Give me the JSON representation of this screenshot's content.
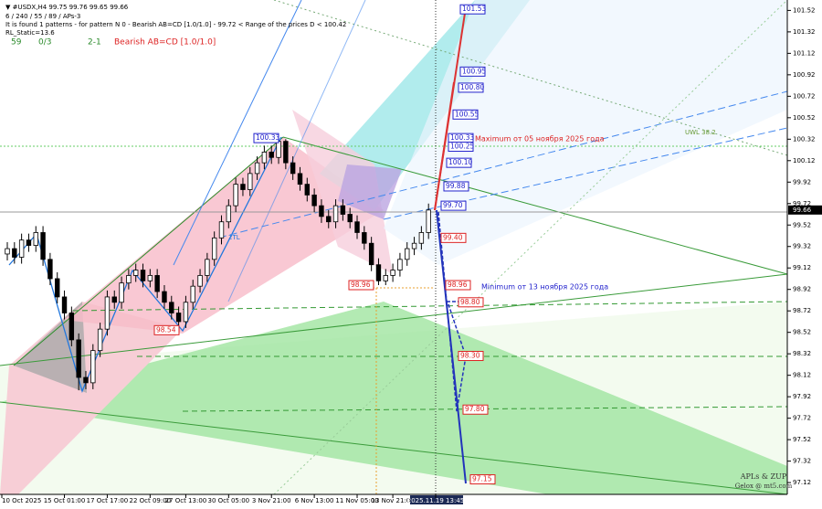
{
  "header": {
    "symbol": "▼ #USDX,H4  99.75 99.76 99.65 99.66",
    "params": "6 / 240 / 55 / 89 / APs-3",
    "pattern_info": "It is found 1 patterns  -  for pattern N 0 - Bearish AB=CD [1.0/1.0] - 99.72 < Range of the prices D < 100.42",
    "rl_static": "RL_Static=13.6",
    "count": "59",
    "ratio": "0/3",
    "mode": "2-1",
    "pattern_name": "Bearish AB=CD [1.0/1.0]"
  },
  "chart_data": {
    "type": "candlestick",
    "open": [
      99.25,
      99.3,
      99.22,
      99.38,
      99.33,
      99.45,
      99.2,
      99.02,
      98.85,
      98.7,
      98.45,
      98.1,
      98.05,
      98.35,
      98.55,
      98.85,
      98.8,
      98.98,
      99.05,
      99.1,
      99.0,
      99.05,
      98.9,
      98.8,
      98.7,
      98.62,
      98.8,
      98.95,
      99.05,
      99.2,
      99.4,
      99.55,
      99.7,
      99.9,
      99.85,
      100.0,
      100.1,
      100.2,
      100.15,
      100.3,
      100.1,
      100.0,
      99.9,
      99.8,
      99.7,
      99.6,
      99.55,
      99.7,
      99.62,
      99.55,
      99.45,
      99.35,
      99.15,
      99.0,
      99.05,
      99.1,
      99.2,
      99.3,
      99.35,
      99.45
    ],
    "high": [
      99.36,
      99.36,
      99.44,
      99.44,
      99.51,
      99.51,
      99.26,
      99.08,
      98.91,
      98.76,
      98.51,
      98.16,
      98.41,
      98.61,
      98.91,
      98.91,
      99.04,
      99.11,
      99.16,
      99.16,
      99.11,
      99.11,
      98.96,
      98.86,
      98.76,
      98.86,
      99.01,
      99.11,
      99.26,
      99.46,
      99.61,
      99.76,
      99.96,
      99.96,
      100.06,
      100.16,
      100.26,
      100.26,
      100.33,
      100.32,
      100.16,
      100.06,
      99.96,
      99.86,
      99.76,
      99.66,
      99.76,
      99.76,
      99.68,
      99.61,
      99.51,
      99.41,
      99.21,
      99.11,
      99.16,
      99.26,
      99.36,
      99.41,
      99.51,
      99.72
    ],
    "low": [
      99.19,
      99.16,
      99.16,
      99.27,
      99.27,
      99.14,
      98.96,
      98.79,
      98.64,
      98.39,
      97.98,
      97.99,
      97.99,
      98.29,
      98.49,
      98.74,
      98.74,
      98.92,
      98.99,
      98.94,
      98.94,
      98.84,
      98.74,
      98.64,
      98.56,
      98.56,
      98.74,
      98.89,
      98.99,
      99.14,
      99.34,
      99.49,
      99.64,
      99.79,
      99.79,
      99.94,
      100.04,
      100.09,
      100.09,
      100.04,
      99.94,
      99.84,
      99.74,
      99.64,
      99.54,
      99.49,
      99.49,
      99.56,
      99.49,
      99.39,
      99.29,
      99.09,
      98.96,
      98.96,
      98.99,
      99.04,
      99.14,
      99.24,
      99.29,
      99.39
    ],
    "close": [
      99.3,
      99.22,
      99.38,
      99.33,
      99.45,
      99.2,
      99.02,
      98.85,
      98.7,
      98.45,
      98.1,
      98.05,
      98.35,
      98.55,
      98.85,
      98.8,
      98.98,
      99.05,
      99.1,
      99.0,
      99.05,
      98.9,
      98.8,
      98.7,
      98.62,
      98.8,
      98.95,
      99.05,
      99.2,
      99.4,
      99.55,
      99.7,
      99.9,
      99.85,
      100.0,
      100.1,
      100.2,
      100.15,
      100.3,
      100.1,
      100.0,
      99.9,
      99.8,
      99.7,
      99.6,
      99.55,
      99.7,
      99.62,
      99.55,
      99.45,
      99.35,
      99.15,
      99.0,
      99.05,
      99.1,
      99.2,
      99.3,
      99.35,
      99.45,
      99.66
    ],
    "up_color": "#000000",
    "down_color": "#000000",
    "xlim": [
      -1,
      60
    ],
    "xticks": [
      {
        "value": -1,
        "label": "10 Oct 2025"
      },
      {
        "value": 8,
        "label": "15 Oct 01:00"
      },
      {
        "value": 14,
        "label": "17 Oct 17:00"
      },
      {
        "value": 20,
        "label": "22 Oct 09:00"
      },
      {
        "value": 25,
        "label": "27 Oct 13:00"
      },
      {
        "value": 31,
        "label": "30 Oct 05:00"
      },
      {
        "value": 37,
        "label": "3 Nov 21:00"
      },
      {
        "value": 43,
        "label": "6 Nov 13:00"
      },
      {
        "value": 49,
        "label": "11 Nov 05:00"
      },
      {
        "value": 54,
        "label": "13 Nov 21:00"
      },
      {
        "value": 60,
        "label": "2025.11.19 13:45"
      }
    ],
    "ylim": [
      97.01,
      101.6
    ],
    "yticks": [
      101.52,
      101.32,
      101.12,
      100.92,
      100.72,
      100.52,
      100.32,
      100.12,
      99.92,
      99.72,
      99.52,
      99.32,
      99.12,
      98.92,
      98.72,
      98.52,
      98.32,
      98.12,
      97.92,
      97.72,
      97.52,
      97.32,
      97.12
    ],
    "current_price": 99.66,
    "levels": [
      {
        "value": 101.53,
        "label": "101.53",
        "color": "#2222cc"
      },
      {
        "value": 100.95,
        "label": "100.95",
        "color": "#2222cc"
      },
      {
        "value": 100.8,
        "label": "100.80",
        "color": "#2222cc"
      },
      {
        "value": 100.55,
        "label": "100.55",
        "color": "#2222cc"
      },
      {
        "value": 100.33,
        "label": "100.33",
        "color": "#2222cc"
      },
      {
        "value": 100.25,
        "label": "100.25",
        "color": "#2222cc"
      },
      {
        "value": 100.1,
        "label": "100.10",
        "color": "#2222cc"
      },
      {
        "value": 99.88,
        "label": "99.88",
        "color": "#2222cc"
      },
      {
        "value": 99.7,
        "label": "99.70",
        "color": "#2222cc"
      },
      {
        "value": 99.4,
        "label": "99.40",
        "color": "#dd2222"
      },
      {
        "value": 98.96,
        "label": "98.96",
        "color": "#dd2222"
      },
      {
        "value": 98.8,
        "label": "98.80",
        "color": "#dd2222"
      },
      {
        "value": 98.3,
        "label": "98.30",
        "color": "#dd2222"
      },
      {
        "value": 97.8,
        "label": "97.80",
        "color": "#dd2222"
      },
      {
        "value": 97.15,
        "label": "97.15",
        "color": "#dd2222"
      },
      {
        "value": 100.33,
        "label": "100.33",
        "color": "#2222cc"
      },
      {
        "value": 98.96,
        "label": "98.96",
        "color": "#dd2222"
      },
      {
        "value": 98.54,
        "label": "98.54",
        "color": "#dd2222"
      }
    ],
    "annotations": [
      {
        "text": "Maximum от 05 ноября 2025 года",
        "color": "#dd2222"
      },
      {
        "text": "Minimum от 13 ноября 2025 года",
        "color": "#2222cc"
      },
      {
        "text": "2TL",
        "color": "#2277dd"
      },
      {
        "text": "UWL 38.2",
        "color": "#669933"
      }
    ],
    "credits": [
      "APLs & ZUP",
      "Gelox @ mt5.com"
    ]
  }
}
